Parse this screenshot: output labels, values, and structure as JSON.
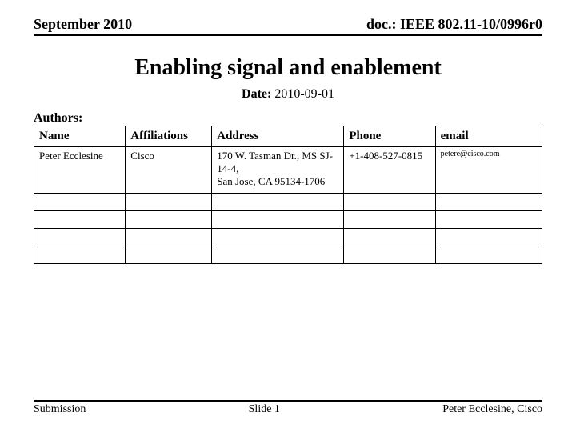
{
  "header": {
    "left": "September 2010",
    "right": "doc.: IEEE 802.11-10/0996r0"
  },
  "title": "Enabling signal and enablement",
  "date": {
    "label": "Date:",
    "value": "2010-09-01"
  },
  "authors_label": "Authors:",
  "table": {
    "columns": [
      "Name",
      "Affiliations",
      "Address",
      "Phone",
      "email"
    ],
    "rows": [
      {
        "name": "Peter Ecclesine",
        "affiliations": "Cisco",
        "address": "170 W. Tasman Dr., MS SJ-14-4,\n San Jose, CA 95134-1706",
        "phone": "+1-408-527-0815",
        "email": "petere@cisco.com"
      }
    ]
  },
  "footer": {
    "left": "Submission",
    "center": "Slide 1",
    "right": "Peter Ecclesine, Cisco"
  }
}
